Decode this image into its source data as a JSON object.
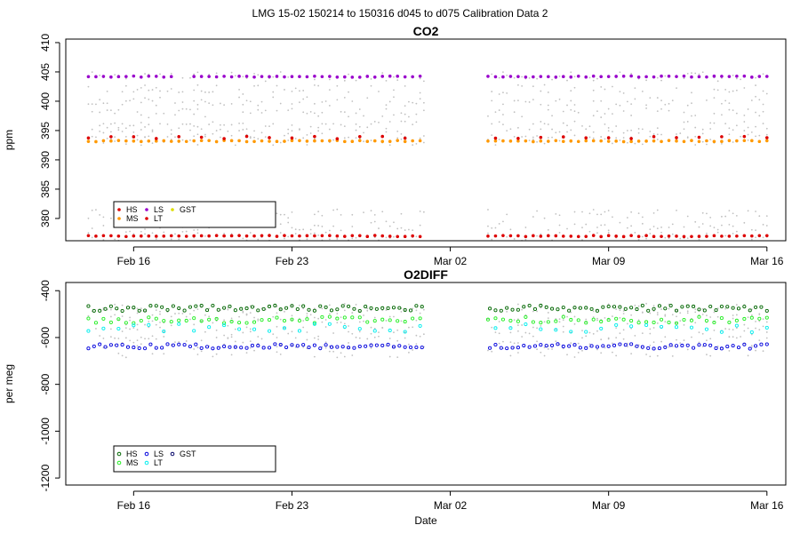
{
  "page_title": "LMG   15-02    150214 to 150316    d045 to d075   Calibration Data 2",
  "chart_data": [
    {
      "type": "scatter",
      "title": "CO2",
      "ylabel": "ppm",
      "xlabel": "",
      "ylim": [
        376.2,
        410.6
      ],
      "yticks": [
        380,
        385,
        390,
        395,
        400,
        405,
        410
      ],
      "x_axis": {
        "type": "date",
        "range": [
          "2015-02-13T00:00",
          "2015-03-16T20:00"
        ],
        "ticks": [
          {
            "date": "2015-02-16",
            "label": "Feb 16"
          },
          {
            "date": "2015-02-23",
            "label": "Feb 23"
          },
          {
            "date": "2015-03-02",
            "label": "Mar 02"
          },
          {
            "date": "2015-03-09",
            "label": "Mar 09"
          },
          {
            "date": "2015-03-16",
            "label": "Mar 16"
          }
        ]
      },
      "grid": false,
      "legend_position": "bottom-left",
      "legend": [
        {
          "name": "HS",
          "color": "#dd0000"
        },
        {
          "name": "LS",
          "color": "#9900cc"
        },
        {
          "name": "GST",
          "color": "#dddd00"
        },
        {
          "name": "MS",
          "color": "#ff9900"
        },
        {
          "name": "LT",
          "color": "#dd0000"
        }
      ],
      "series": [
        {
          "name": "HS",
          "color": "#dd0000",
          "base": 377,
          "spread": 0.1,
          "start": "2015-02-14T00:00",
          "end": "2015-03-16T00:00",
          "step_hours": 8,
          "gaps": [
            [
              "2015-03-01T00:00",
              "2015-03-03T12:00"
            ]
          ]
        },
        {
          "name": "LS",
          "color": "#9900cc",
          "base": 404.2,
          "spread": 0.1,
          "start": "2015-02-14T00:00",
          "end": "2015-03-16T00:00",
          "step_hours": 8,
          "gaps": [
            [
              "2015-02-18T00:00",
              "2015-02-18T12:00"
            ],
            [
              "2015-03-01T00:00",
              "2015-03-03T12:00"
            ]
          ]
        },
        {
          "name": "MS",
          "color": "#ff9900",
          "base": 393.2,
          "spread": 0.1,
          "start": "2015-02-14T00:00",
          "end": "2015-03-16T00:00",
          "step_hours": 8,
          "gaps": [
            [
              "2015-03-01T00:00",
              "2015-03-03T12:00"
            ]
          ]
        },
        {
          "name": "LT",
          "color": "#dd0000",
          "base": 393.8,
          "spread": 0.2,
          "start": "2015-02-14T00:00",
          "end": "2015-03-16T00:00",
          "step_hours": 24,
          "gaps": [
            [
              "2015-03-01T00:00",
              "2015-03-03T12:00"
            ]
          ]
        }
      ],
      "background_samples": {
        "color": "#c0c0c0",
        "levels": [
          377,
          378.7,
          380.8,
          393.3,
          394.5,
          395.8,
          398,
          400,
          402,
          404.2
        ],
        "jitter": 0.8,
        "start": "2015-02-14T00:00",
        "end": "2015-03-16T00:00",
        "step_hours": 4,
        "gaps": [
          [
            "2015-03-01T00:00",
            "2015-03-03T12:00"
          ]
        ]
      }
    },
    {
      "type": "scatter",
      "title": "O2DIFF",
      "ylabel": "per meg",
      "xlabel": "Date",
      "ylim": [
        -1230,
        -365
      ],
      "yticks": [
        -1200,
        -1000,
        -800,
        -600,
        -400
      ],
      "x_axis": {
        "type": "date",
        "range": [
          "2015-02-13T00:00",
          "2015-03-16T20:00"
        ],
        "ticks": [
          {
            "date": "2015-02-16",
            "label": "Feb 16"
          },
          {
            "date": "2015-02-23",
            "label": "Feb 23"
          },
          {
            "date": "2015-03-02",
            "label": "Mar 02"
          },
          {
            "date": "2015-03-09",
            "label": "Mar 09"
          },
          {
            "date": "2015-03-16",
            "label": "Mar 16"
          }
        ]
      },
      "grid": false,
      "legend_position": "bottom-left",
      "legend": [
        {
          "name": "HS",
          "color": "#006600"
        },
        {
          "name": "LS",
          "color": "#0000dd"
        },
        {
          "name": "GST",
          "color": "#000066"
        },
        {
          "name": "MS",
          "color": "#22ee22"
        },
        {
          "name": "LT",
          "color": "#00eeee"
        }
      ],
      "series": [
        {
          "name": "HS",
          "color": "#006600",
          "base": -475,
          "spread": 12,
          "start": "2015-02-14T00:00",
          "end": "2015-03-16T00:00",
          "step_hours": 6,
          "gaps": [
            [
              "2015-03-01T00:00",
              "2015-03-03T12:00"
            ]
          ]
        },
        {
          "name": "MS",
          "color": "#22ee22",
          "base": -525,
          "spread": 14,
          "start": "2015-02-14T00:00",
          "end": "2015-03-16T00:00",
          "step_hours": 8,
          "gaps": [
            [
              "2015-03-01T00:00",
              "2015-03-03T12:00"
            ]
          ]
        },
        {
          "name": "LT",
          "color": "#00eeee",
          "base": -560,
          "spread": 18,
          "start": "2015-02-14T00:00",
          "end": "2015-03-16T00:00",
          "step_hours": 16,
          "gaps": [
            [
              "2015-03-01T00:00",
              "2015-03-03T12:00"
            ]
          ]
        },
        {
          "name": "LS",
          "color": "#0000dd",
          "base": -638,
          "spread": 10,
          "start": "2015-02-14T00:00",
          "end": "2015-03-16T00:00",
          "step_hours": 6,
          "gaps": [
            [
              "2015-03-01T00:00",
              "2015-03-03T12:00"
            ]
          ]
        }
      ],
      "background_samples": {
        "color": "#c0c0c0",
        "levels": [
          -480,
          -500,
          -540,
          -580,
          -620,
          -660
        ],
        "jitter": 25,
        "start": "2015-02-14T00:00",
        "end": "2015-03-16T00:00",
        "step_hours": 4,
        "gaps": [
          [
            "2015-03-01T00:00",
            "2015-03-03T12:00"
          ]
        ]
      }
    }
  ]
}
